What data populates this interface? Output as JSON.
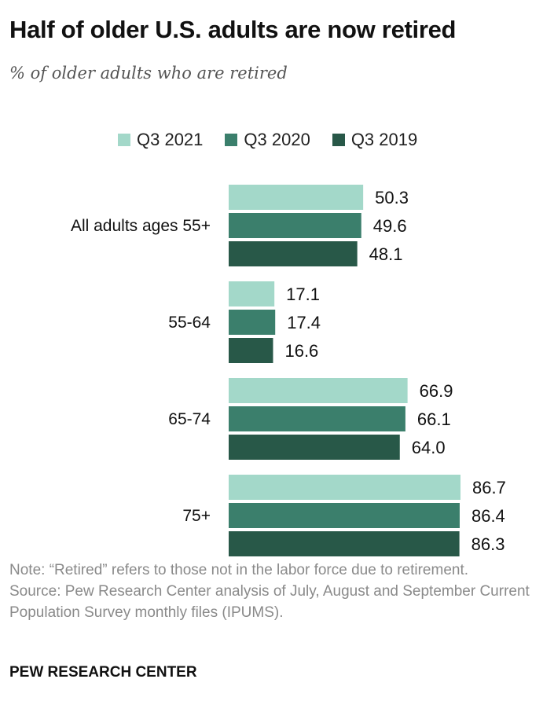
{
  "title": "Half of older U.S. adults are now retired",
  "subtitle": "% of older adults who are retired",
  "note": "Note: “Retired” refers to those not in the labor force due to retirement.",
  "source": "Source: Pew Research Center analysis of July, August and September Current Population Survey monthly files (IPUMS).",
  "brand": "PEW RESEARCH CENTER",
  "chart_data": {
    "type": "bar",
    "orientation": "horizontal",
    "categories": [
      "All adults ages 55+",
      "55-64",
      "65-74",
      "75+"
    ],
    "series": [
      {
        "name": "Q3 2021",
        "color": "#a3d8c9",
        "values": [
          50.3,
          17.1,
          66.9,
          86.7
        ]
      },
      {
        "name": "Q3 2020",
        "color": "#3b7f6c",
        "values": [
          49.6,
          17.4,
          66.1,
          86.4
        ]
      },
      {
        "name": "Q3 2019",
        "color": "#285848",
        "values": [
          48.1,
          16.6,
          64.0,
          86.3
        ]
      }
    ],
    "value_labels": [
      [
        "50.3",
        "49.6",
        "48.1"
      ],
      [
        "17.1",
        "17.4",
        "16.6"
      ],
      [
        "66.9",
        "66.1",
        "64.0"
      ],
      [
        "86.7",
        "86.4",
        "86.3"
      ]
    ],
    "xlim": [
      0,
      86.7
    ],
    "legend_position": "top",
    "grid": false
  }
}
